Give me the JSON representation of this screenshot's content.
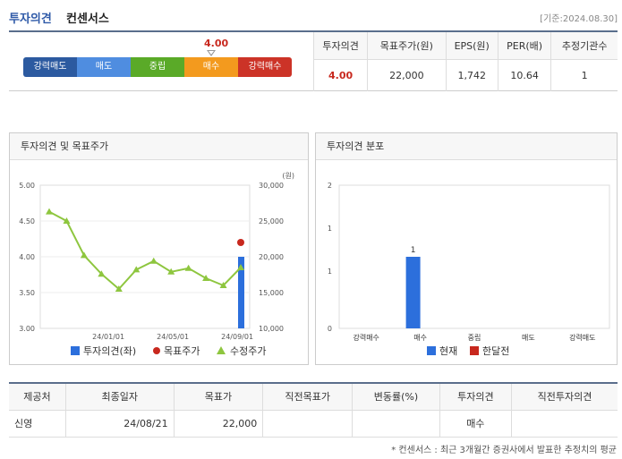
{
  "header": {
    "title_a": "투자의견",
    "title_b": "컨센서스",
    "date": "[기준:2024.08.30]"
  },
  "scale": {
    "current": "4.00",
    "segments": [
      {
        "label": "강력매도",
        "color": "#2c5aa0"
      },
      {
        "label": "매도",
        "color": "#4f8de0"
      },
      {
        "label": "중립",
        "color": "#5aaa28"
      },
      {
        "label": "매수",
        "color": "#f39a1e"
      },
      {
        "label": "강력매수",
        "color": "#cc3327"
      }
    ]
  },
  "summary": {
    "headers": [
      "투자의견",
      "목표주가(원)",
      "EPS(원)",
      "PER(배)",
      "추정기관수"
    ],
    "values": [
      "4.00",
      "22,000",
      "1,742",
      "10.64",
      "1"
    ]
  },
  "panel_left_title": "투자의견 및 목표주가",
  "panel_right_title": "투자의견 분포",
  "chart_data": [
    {
      "type": "line",
      "ylim_left": [
        3.0,
        5.0
      ],
      "yticks_left": [
        "5.00",
        "4.50",
        "4.00",
        "3.50",
        "3.00"
      ],
      "ylim_right": [
        10000,
        30000
      ],
      "yticks_right": [
        "30,000",
        "25,000",
        "20,000",
        "15,000",
        "10,000"
      ],
      "yunit_right": "(원)",
      "xticks": [
        "24/01/01",
        "24/05/01",
        "24/09/01"
      ],
      "series": [
        {
          "name": "투자의견(좌)",
          "kind": "bar",
          "color": "#2c6fdc",
          "points": [
            {
              "x": 11.0,
              "y": 4.0
            }
          ]
        },
        {
          "name": "목표주가",
          "kind": "dot",
          "color": "#c8281e",
          "points": [
            {
              "x": 11.0,
              "y": 22000
            }
          ]
        },
        {
          "name": "수정주가",
          "kind": "line",
          "color": "#8ec63f",
          "points": [
            {
              "x": 0,
              "y": 26300
            },
            {
              "x": 1,
              "y": 25000
            },
            {
              "x": 2,
              "y": 20200
            },
            {
              "x": 3,
              "y": 17600
            },
            {
              "x": 4,
              "y": 15500
            },
            {
              "x": 5,
              "y": 18200
            },
            {
              "x": 6,
              "y": 19400
            },
            {
              "x": 7,
              "y": 17900
            },
            {
              "x": 8,
              "y": 18400
            },
            {
              "x": 9,
              "y": 17000
            },
            {
              "x": 10,
              "y": 16000
            },
            {
              "x": 11,
              "y": 18500
            }
          ]
        }
      ]
    },
    {
      "type": "bar",
      "ylim": [
        0,
        2
      ],
      "yticks": [
        "2",
        "1",
        "1",
        "0"
      ],
      "categories": [
        "강력매수",
        "매수",
        "중립",
        "매도",
        "강력매도"
      ],
      "series": [
        {
          "name": "현재",
          "color": "#2c6fdc",
          "values": [
            0,
            1,
            0,
            0,
            0
          ]
        },
        {
          "name": "한달전",
          "color": "#c8281e",
          "values": [
            0,
            0,
            0,
            0,
            0
          ]
        }
      ],
      "data_labels": [
        "",
        "1",
        "",
        "",
        ""
      ]
    }
  ],
  "bottom_table": {
    "headers": [
      "제공처",
      "최종일자",
      "목표가",
      "직전목표가",
      "변동률(%)",
      "투자의견",
      "직전투자의견"
    ],
    "rows": [
      [
        "신영",
        "24/08/21",
        "22,000",
        "",
        "",
        "매수",
        ""
      ]
    ]
  },
  "footnote": "* 컨센서스 : 최근 3개월간 증권사에서 발표한 추정치의 평균"
}
